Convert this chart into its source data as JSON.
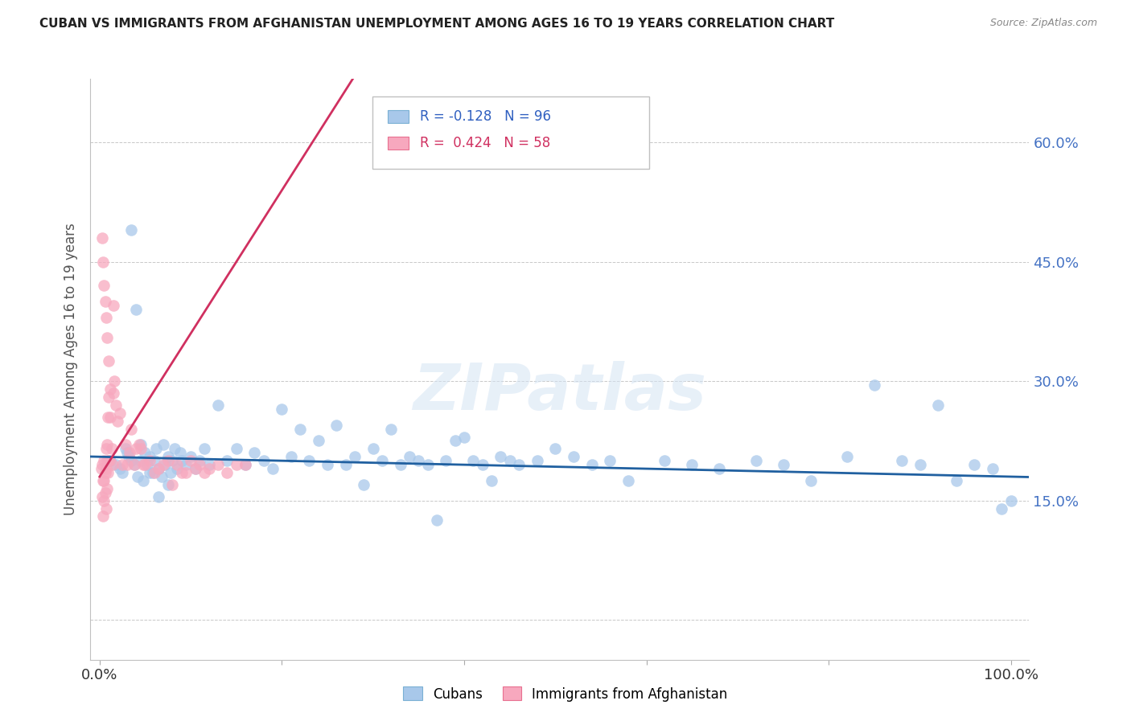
{
  "title": "CUBAN VS IMMIGRANTS FROM AFGHANISTAN UNEMPLOYMENT AMONG AGES 16 TO 19 YEARS CORRELATION CHART",
  "source": "Source: ZipAtlas.com",
  "ylabel": "Unemployment Among Ages 16 to 19 years",
  "ytick_labels": [
    "",
    "15.0%",
    "30.0%",
    "45.0%",
    "60.0%"
  ],
  "ytick_values": [
    0.0,
    0.15,
    0.3,
    0.45,
    0.6
  ],
  "xlim": [
    0.0,
    1.0
  ],
  "ylim": [
    0.0,
    0.65
  ],
  "blue_scatter_color": "#a8c8ea",
  "pink_scatter_color": "#f7a8be",
  "blue_line_color": "#2060a0",
  "pink_line_color": "#d03060",
  "watermark": "ZIPatlas",
  "cubans_x": [
    0.012,
    0.018,
    0.022,
    0.025,
    0.028,
    0.03,
    0.032,
    0.035,
    0.038,
    0.04,
    0.042,
    0.045,
    0.048,
    0.05,
    0.052,
    0.055,
    0.058,
    0.06,
    0.062,
    0.065,
    0.068,
    0.07,
    0.072,
    0.075,
    0.078,
    0.08,
    0.082,
    0.085,
    0.088,
    0.09,
    0.095,
    0.1,
    0.105,
    0.11,
    0.115,
    0.12,
    0.13,
    0.14,
    0.15,
    0.16,
    0.17,
    0.18,
    0.19,
    0.2,
    0.21,
    0.22,
    0.23,
    0.24,
    0.25,
    0.26,
    0.27,
    0.28,
    0.29,
    0.3,
    0.31,
    0.32,
    0.33,
    0.34,
    0.35,
    0.36,
    0.37,
    0.38,
    0.39,
    0.4,
    0.41,
    0.42,
    0.43,
    0.44,
    0.45,
    0.46,
    0.48,
    0.5,
    0.52,
    0.54,
    0.56,
    0.58,
    0.62,
    0.65,
    0.68,
    0.72,
    0.75,
    0.78,
    0.82,
    0.85,
    0.88,
    0.9,
    0.92,
    0.94,
    0.96,
    0.98,
    0.99,
    1.0,
    0.045,
    0.055,
    0.065,
    0.075
  ],
  "cubans_y": [
    0.2,
    0.195,
    0.19,
    0.185,
    0.215,
    0.21,
    0.205,
    0.2,
    0.195,
    0.39,
    0.18,
    0.22,
    0.175,
    0.21,
    0.195,
    0.205,
    0.185,
    0.2,
    0.215,
    0.19,
    0.18,
    0.22,
    0.195,
    0.205,
    0.185,
    0.2,
    0.215,
    0.19,
    0.21,
    0.2,
    0.195,
    0.205,
    0.19,
    0.2,
    0.215,
    0.195,
    0.27,
    0.2,
    0.215,
    0.195,
    0.21,
    0.2,
    0.19,
    0.265,
    0.205,
    0.24,
    0.2,
    0.225,
    0.195,
    0.245,
    0.195,
    0.205,
    0.17,
    0.215,
    0.2,
    0.24,
    0.195,
    0.205,
    0.2,
    0.195,
    0.125,
    0.2,
    0.225,
    0.23,
    0.2,
    0.195,
    0.175,
    0.205,
    0.2,
    0.195,
    0.2,
    0.215,
    0.205,
    0.195,
    0.2,
    0.175,
    0.2,
    0.195,
    0.19,
    0.2,
    0.195,
    0.175,
    0.205,
    0.295,
    0.2,
    0.195,
    0.27,
    0.175,
    0.195,
    0.19,
    0.14,
    0.15,
    0.2,
    0.185,
    0.155,
    0.17
  ],
  "afghan_x": [
    0.002,
    0.003,
    0.003,
    0.004,
    0.004,
    0.005,
    0.005,
    0.005,
    0.006,
    0.006,
    0.007,
    0.007,
    0.007,
    0.008,
    0.008,
    0.008,
    0.009,
    0.009,
    0.01,
    0.01,
    0.011,
    0.012,
    0.013,
    0.014,
    0.015,
    0.016,
    0.018,
    0.02,
    0.022,
    0.025,
    0.028,
    0.03,
    0.033,
    0.035,
    0.038,
    0.04,
    0.043,
    0.045,
    0.048,
    0.05,
    0.055,
    0.06,
    0.065,
    0.07,
    0.075,
    0.08,
    0.085,
    0.09,
    0.095,
    0.1,
    0.105,
    0.11,
    0.115,
    0.12,
    0.13,
    0.14,
    0.15,
    0.16
  ],
  "afghan_y": [
    0.19,
    0.195,
    0.155,
    0.175,
    0.13,
    0.2,
    0.175,
    0.15,
    0.185,
    0.16,
    0.215,
    0.19,
    0.14,
    0.2,
    0.22,
    0.165,
    0.255,
    0.185,
    0.2,
    0.28,
    0.2,
    0.255,
    0.215,
    0.195,
    0.285,
    0.3,
    0.27,
    0.25,
    0.26,
    0.195,
    0.22,
    0.195,
    0.21,
    0.24,
    0.195,
    0.215,
    0.22,
    0.215,
    0.195,
    0.195,
    0.2,
    0.185,
    0.19,
    0.195,
    0.2,
    0.17,
    0.195,
    0.185,
    0.185,
    0.2,
    0.19,
    0.195,
    0.185,
    0.19,
    0.195,
    0.185,
    0.195,
    0.195
  ],
  "afghan_high_x": [
    0.003,
    0.004,
    0.005,
    0.006,
    0.007,
    0.008,
    0.01,
    0.012,
    0.015
  ],
  "afghan_high_y": [
    0.48,
    0.45,
    0.42,
    0.4,
    0.38,
    0.355,
    0.325,
    0.29,
    0.395
  ],
  "cuban_high_x": [
    0.035
  ],
  "cuban_high_y": [
    0.49
  ]
}
